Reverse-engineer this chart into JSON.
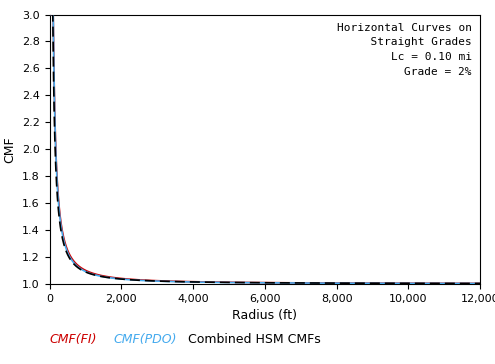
{
  "title_text": "Horizontal Curves on\n  Straight Grades\nLc = 0.10 mi\nGrade = 2%",
  "xlabel": "Radius (ft)",
  "ylabel": "CMF",
  "xlim": [
    0,
    12000
  ],
  "ylim": [
    1.0,
    3.0
  ],
  "xticks": [
    0,
    2000,
    4000,
    6000,
    8000,
    10000,
    12000
  ],
  "yticks": [
    1.0,
    1.2,
    1.4,
    1.6,
    1.8,
    2.0,
    2.2,
    2.4,
    2.6,
    2.8,
    3.0
  ],
  "legend_labels": [
    "CMF(FI)",
    "CMF(PDO)",
    "Combined HSM CMFs"
  ],
  "legend_colors": [
    "#cc0000",
    "#44aaee",
    "#000000"
  ],
  "fi_color": "#cc0000",
  "pdo_color": "#44aaee",
  "hsm_color": "#000000",
  "fi_a": 2.0,
  "fi_b": 0.00028,
  "fi_c": 0.55,
  "pdo_a": 1.92,
  "pdo_b": 0.00038,
  "pdo_c": 0.58,
  "hsm_a": 1.98,
  "hsm_b": 0.00055,
  "hsm_c": 0.65,
  "note_fontsize": 8,
  "axis_label_fontsize": 9,
  "tick_fontsize": 8,
  "legend_fontsize": 9
}
